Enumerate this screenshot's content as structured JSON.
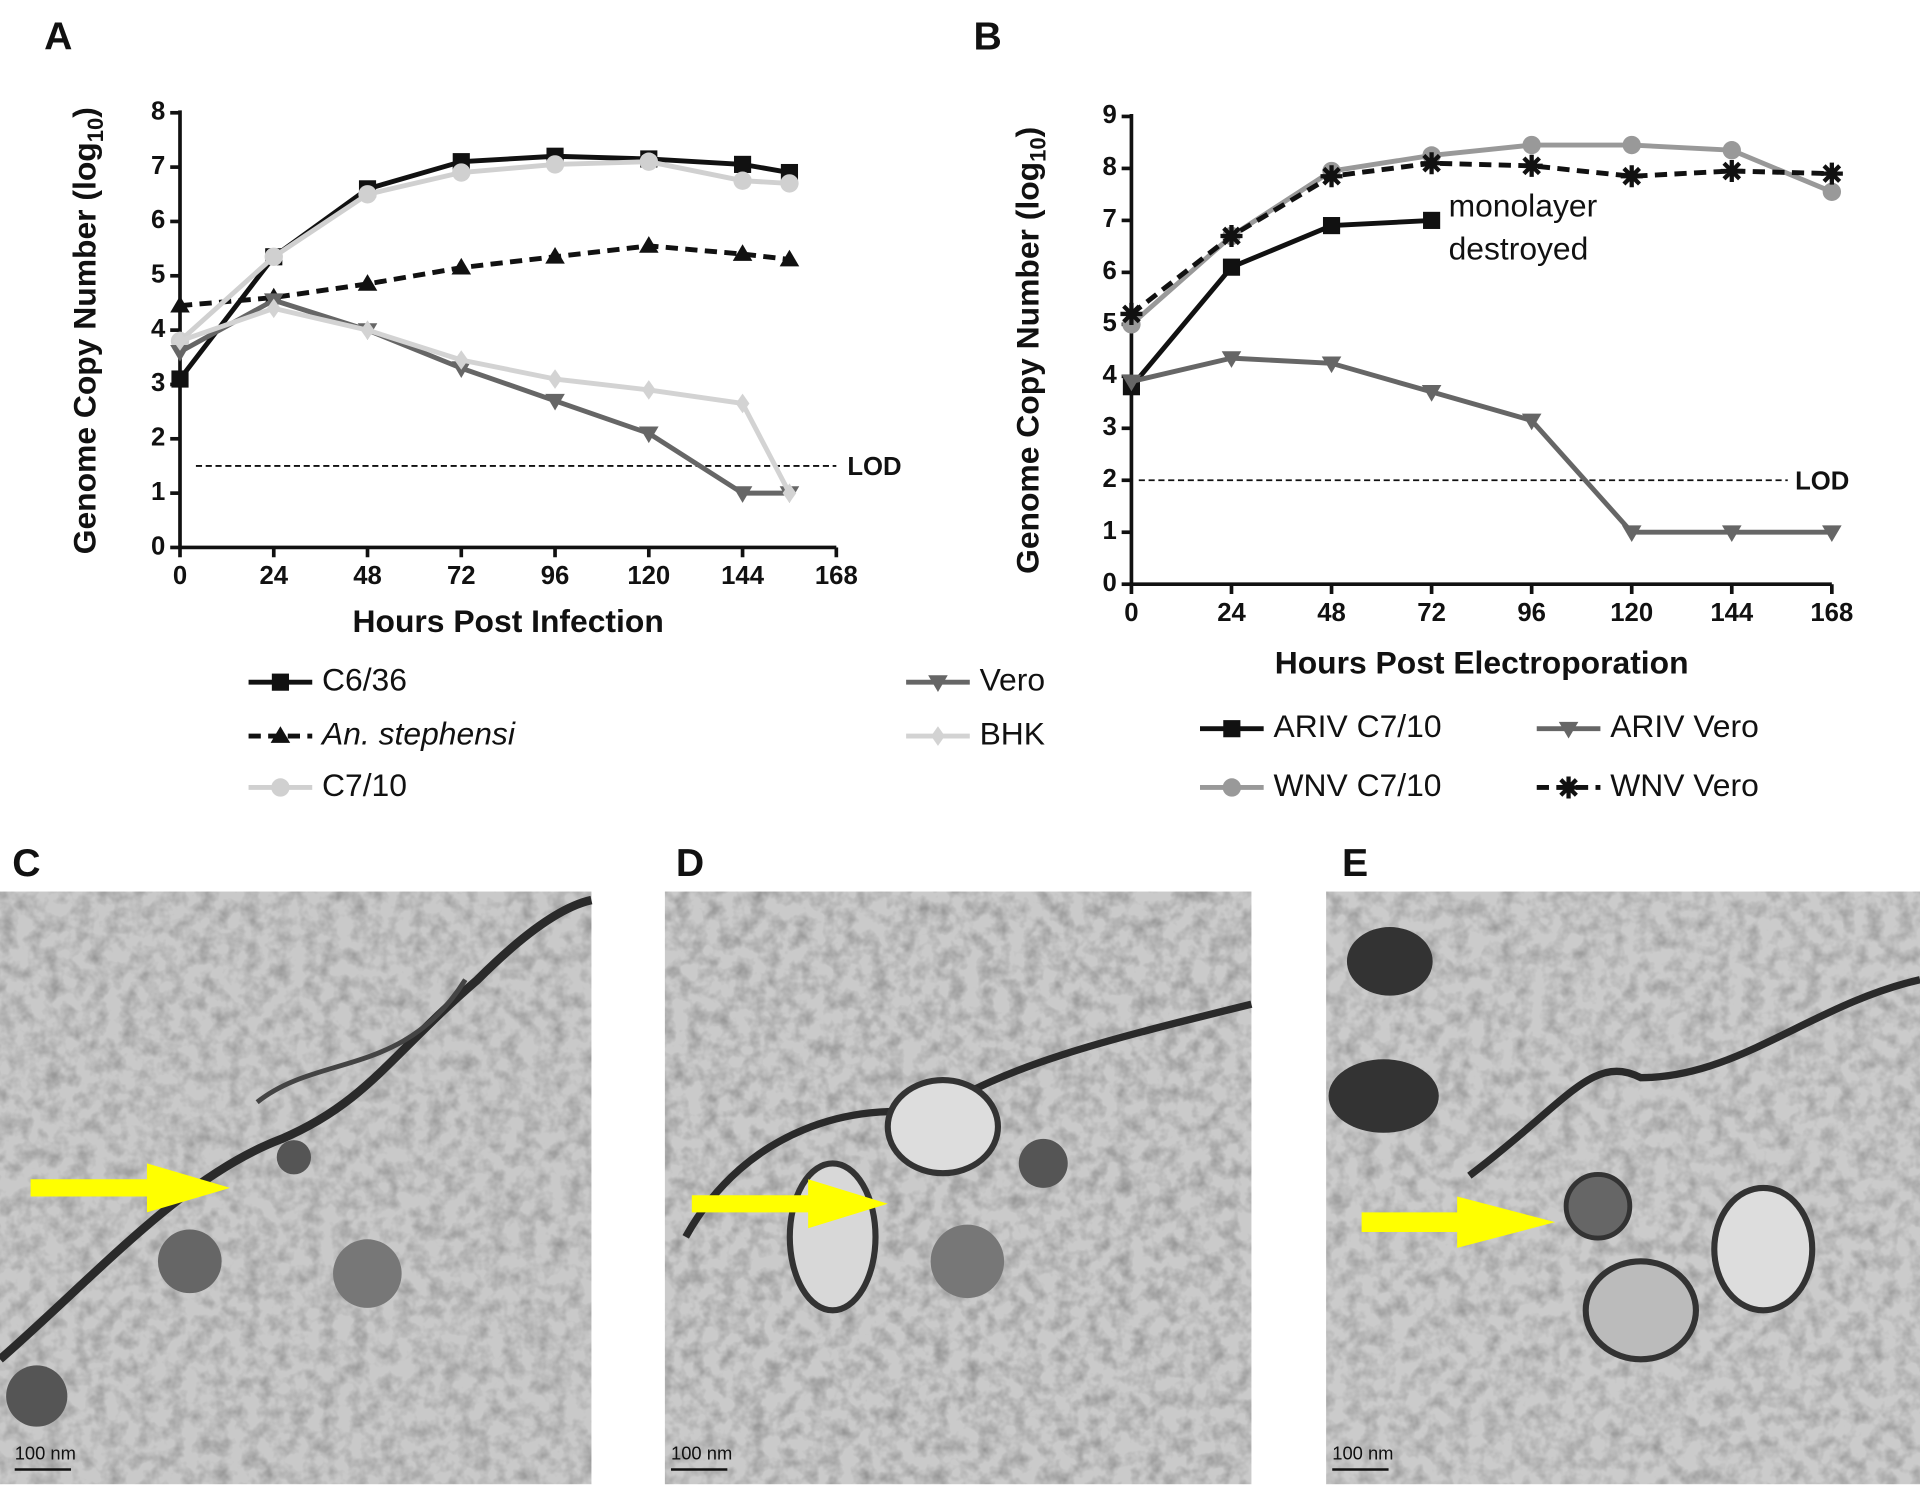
{
  "chart_data": [
    {
      "type": "line",
      "panel": "A",
      "x_label": "Hours Post Infection",
      "y_label": [
        "Genome Copy Number (log",
        "10",
        ")"
      ],
      "x": [
        0,
        24,
        48,
        72,
        96,
        120,
        144,
        156
      ],
      "xlim": [
        0,
        168
      ],
      "xticks": [
        0,
        24,
        48,
        72,
        96,
        120,
        144,
        168
      ],
      "ylim": [
        0,
        8
      ],
      "yticks": [
        0,
        1,
        2,
        3,
        4,
        5,
        6,
        7,
        8
      ],
      "lod": {
        "value": 1.5,
        "label": "LOD"
      },
      "series": [
        {
          "name": "C6/36",
          "color": "#111111",
          "marker": "square",
          "dash": false,
          "values": [
            3.1,
            5.35,
            6.6,
            7.1,
            7.2,
            7.15,
            7.05,
            6.9
          ]
        },
        {
          "name": "An. stephensi",
          "color": "#111111",
          "marker": "triangle",
          "dash": true,
          "italic": true,
          "values": [
            4.45,
            4.6,
            4.85,
            5.15,
            5.35,
            5.55,
            5.4,
            5.3
          ]
        },
        {
          "name": "C7/10",
          "color": "#d0d0d0",
          "marker": "circle",
          "dash": false,
          "values": [
            3.8,
            5.35,
            6.5,
            6.9,
            7.05,
            7.1,
            6.75,
            6.7
          ]
        },
        {
          "name": "Vero",
          "color": "#666666",
          "marker": "down-triangle",
          "dash": false,
          "values": [
            3.6,
            4.55,
            4.0,
            3.3,
            2.7,
            2.1,
            1.0,
            1.0
          ]
        },
        {
          "name": "BHK",
          "color": "#d3d3d3",
          "marker": "diamond",
          "dash": false,
          "values": [
            3.8,
            4.4,
            4.0,
            3.45,
            3.1,
            2.9,
            2.65,
            1.0
          ]
        }
      ]
    },
    {
      "type": "line",
      "panel": "B",
      "x_label": "Hours Post Electroporation",
      "y_label": [
        "Genome Copy Number (log",
        "10",
        ")"
      ],
      "x": [
        0,
        24,
        48,
        72,
        96,
        120,
        144,
        168
      ],
      "xlim": [
        0,
        168
      ],
      "xticks": [
        0,
        24,
        48,
        72,
        96,
        120,
        144,
        168
      ],
      "ylim": [
        0,
        9
      ],
      "yticks": [
        0,
        1,
        2,
        3,
        4,
        5,
        6,
        7,
        8,
        9
      ],
      "lod": {
        "value": 2,
        "label": "LOD"
      },
      "annotation": [
        "monolayer",
        "destroyed"
      ],
      "series": [
        {
          "name": "ARIV C7/10",
          "color": "#111111",
          "marker": "square",
          "dash": false,
          "values": [
            3.8,
            6.1,
            6.9,
            7.0,
            null,
            null,
            null,
            null
          ]
        },
        {
          "name": "ARIV Vero",
          "color": "#666666",
          "marker": "down-triangle",
          "dash": false,
          "values": [
            3.9,
            4.35,
            4.25,
            3.7,
            3.15,
            1.0,
            1.0,
            1.0
          ]
        },
        {
          "name": "WNV C7/10",
          "color": "#999999",
          "marker": "circle",
          "dash": false,
          "values": [
            5.0,
            6.7,
            7.95,
            8.25,
            8.45,
            8.45,
            8.35,
            7.55
          ]
        },
        {
          "name": "WNV Vero",
          "color": "#111111",
          "marker": "star",
          "dash": true,
          "values": [
            5.2,
            6.7,
            7.85,
            8.1,
            8.05,
            7.85,
            7.95,
            7.9
          ]
        }
      ]
    }
  ],
  "images": [
    {
      "label": "C",
      "scale_bar": "100 nm"
    },
    {
      "label": "D",
      "scale_bar": "100 nm"
    },
    {
      "label": "E",
      "scale_bar": "100 nm"
    }
  ]
}
